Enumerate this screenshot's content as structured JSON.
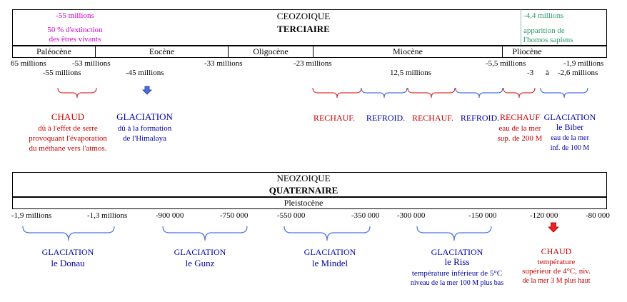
{
  "ceno": {
    "era": "CEOZOIQUE",
    "period": "TERCIAIRE",
    "note_left": {
      "l1": "-55 millions",
      "l2": "50 % d'extinction",
      "l3": "des êtres vivants"
    },
    "note_right": {
      "l1": "-4,4 millions",
      "l2": "apparition de",
      "l3": "l'homos sapiens"
    },
    "epochs": [
      "Paléocène",
      "Eocène",
      "Oligocène",
      "Miocène",
      "Pliocène"
    ],
    "dates_row1": [
      "65 millions",
      "-53 millions",
      "-33 millions",
      "-23 millions",
      "-5,5 millions",
      "-1,9 millions"
    ],
    "dates_row2": [
      "-55 millions",
      "-45 millions",
      "12,5 millions",
      "-3",
      "à",
      "-2,6 millions"
    ],
    "events": [
      {
        "lines": [
          "CHAUD",
          "dû à l'effet de serre",
          "provoquant l'évaporation",
          "du méthane vers l'atmos."
        ]
      },
      {
        "lines": [
          "GLACIATION",
          "dû à la formation",
          "de l'Himalaya"
        ]
      },
      {
        "lines": [
          "RECHAUF."
        ]
      },
      {
        "lines": [
          "REFROID."
        ]
      },
      {
        "lines": [
          "RECHAUF."
        ]
      },
      {
        "lines": [
          "REFROID."
        ]
      },
      {
        "lines": [
          "RECHAUF",
          "eau de la mer",
          "sup. de 200 M"
        ]
      },
      {
        "lines": [
          "GLACIATION",
          "le Biber",
          "eau de la mer",
          "inf. de 100 M"
        ]
      }
    ],
    "colors": {
      "hot": "#cc0000",
      "cold": "#0000aa",
      "bracket_hot": "#dd3333",
      "bracket_cold": "#4a6fe0",
      "arrow_blue": "#4a6fe0"
    }
  },
  "neo": {
    "era": "NEOZOIQUE",
    "period": "QUATERNAIRE",
    "epoch": "Pleistocène",
    "dates": [
      "-1,9 millions",
      "-1,3 millions",
      "-900 000",
      "-750 000",
      "-550 000",
      "-350 000",
      "-300 000",
      "-150 000",
      "-120 000",
      "-80 000"
    ],
    "events": [
      {
        "lines": [
          "GLACIATION",
          "le Donau"
        ]
      },
      {
        "lines": [
          "GLACIATION",
          "le Gunz"
        ]
      },
      {
        "lines": [
          "GLACIATION",
          "le Mindel"
        ]
      },
      {
        "lines": [
          "GLACIATION",
          "le Riss",
          "température inférieur de 5°C",
          "niveau de la mer 100 M plus bas"
        ]
      },
      {
        "lines": [
          "CHAUD",
          "température",
          "supérieur de  4°C, niv.",
          "de la mer 3 M plus haut"
        ]
      }
    ]
  }
}
